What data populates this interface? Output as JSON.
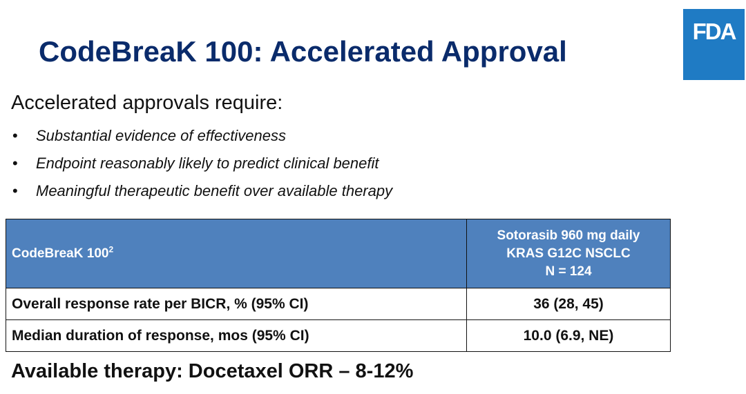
{
  "logo": {
    "text": "FDA",
    "color": "#1f7bc4"
  },
  "title": "CodeBreaK 100: Accelerated Approval",
  "intro": "Accelerated approvals require:",
  "bullet_symbol": "•",
  "bullets": [
    "Substantial evidence of effectiveness",
    "Endpoint reasonably likely to predict clinical benefit",
    "Meaningful therapeutic benefit over available therapy"
  ],
  "table": {
    "header": {
      "study": "CodeBreaK 100",
      "study_superscript": "2",
      "arm_lines": [
        "Sotorasib 960 mg daily",
        "KRAS G12C NSCLC",
        "N = 124"
      ]
    },
    "rows": [
      {
        "label": "Overall response rate per BICR, % (95% CI)",
        "value": "36 (28, 45)"
      },
      {
        "label": "Median duration of response, mos (95% CI)",
        "value": "10.0 (6.9, NE)"
      }
    ],
    "header_color": "#4f81bd"
  },
  "footer": "Available therapy: Docetaxel ORR – 8-12%",
  "colors": {
    "title": "#0a2b6b",
    "text": "#111111"
  }
}
